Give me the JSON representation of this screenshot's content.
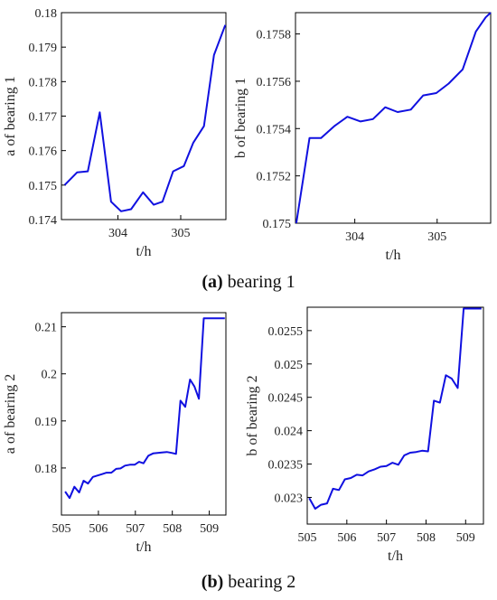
{
  "captions": {
    "a": {
      "letter": "(a)",
      "text": " bearing 1"
    },
    "b": {
      "letter": "(b)",
      "text": " bearing 2"
    }
  },
  "chart_data": [
    {
      "id": "a1",
      "type": "line",
      "xlabel": "t/h",
      "ylabel": "a of  bearing 1",
      "xlim": [
        303.1,
        305.72
      ],
      "ylim": [
        0.174,
        0.18
      ],
      "xticks": [
        "304",
        "305"
      ],
      "yticks": [
        "0.174",
        "0.175",
        "0.176",
        "0.177",
        "0.178",
        "0.179",
        "0.18"
      ],
      "color": "#1010e0",
      "x": [
        303.15,
        303.35,
        303.52,
        303.71,
        303.89,
        304.05,
        304.21,
        304.4,
        304.57,
        304.71,
        304.88,
        305.05,
        305.2,
        305.37,
        305.53,
        305.71
      ],
      "y": [
        0.175,
        0.17537,
        0.1754,
        0.17711,
        0.17452,
        0.17424,
        0.1743,
        0.17479,
        0.17443,
        0.17452,
        0.1754,
        0.17555,
        0.17623,
        0.17671,
        0.17877,
        0.17964
      ]
    },
    {
      "id": "b1",
      "type": "line",
      "xlabel": "t/h",
      "ylabel": "b of  bearing 1",
      "xlim": [
        303.28,
        305.65
      ],
      "ylim": [
        0.175,
        0.17589
      ],
      "xticks": [
        "304",
        "305"
      ],
      "yticks": [
        "0.175",
        "0.1752",
        "0.1754",
        "0.1756",
        "0.1758"
      ],
      "color": "#1010e0",
      "x": [
        303.29,
        303.45,
        303.59,
        303.75,
        303.91,
        304.07,
        304.22,
        304.37,
        304.52,
        304.68,
        304.83,
        304.99,
        305.14,
        305.31,
        305.47,
        305.59,
        305.65
      ],
      "y": [
        0.175,
        0.17536,
        0.17536,
        0.17541,
        0.17545,
        0.17543,
        0.17544,
        0.17549,
        0.17547,
        0.17548,
        0.17554,
        0.17555,
        0.17559,
        0.17565,
        0.17581,
        0.17587,
        0.17589
      ]
    },
    {
      "id": "a2",
      "type": "line",
      "xlabel": "t/h",
      "ylabel": "a of  bearing 2",
      "xlim": [
        505,
        509.45
      ],
      "ylim": [
        0.17,
        0.213
      ],
      "xticks": [
        "505",
        "506",
        "507",
        "508",
        "509"
      ],
      "yticks": [
        "0.18",
        "0.19",
        "0.2",
        "0.21"
      ],
      "color": "#1010e0",
      "x": [
        505.1,
        505.22,
        505.35,
        505.48,
        505.6,
        505.72,
        505.85,
        505.98,
        506.1,
        506.22,
        506.35,
        506.48,
        506.6,
        506.72,
        506.85,
        506.98,
        507.1,
        507.22,
        507.35,
        507.48,
        507.6,
        507.72,
        507.85,
        507.98,
        508.1,
        508.22,
        508.35,
        508.48,
        508.6,
        508.72,
        508.85,
        508.98,
        509.1,
        509.22,
        509.35,
        509.42
      ],
      "y": [
        0.175,
        0.1736,
        0.176,
        0.1748,
        0.1773,
        0.1767,
        0.1781,
        0.1784,
        0.1787,
        0.179,
        0.179,
        0.1798,
        0.1799,
        0.1805,
        0.1807,
        0.1807,
        0.1813,
        0.181,
        0.1826,
        0.1831,
        0.1832,
        0.1833,
        0.1834,
        0.1832,
        0.183,
        0.1943,
        0.193,
        0.1988,
        0.1973,
        0.1947,
        0.2118,
        0.2118,
        0.2118,
        0.2118,
        0.2118,
        0.2118
      ]
    },
    {
      "id": "b2",
      "type": "line",
      "xlabel": "t/h",
      "ylabel": "b of  bearing 2",
      "xlim": [
        505,
        509.45
      ],
      "ylim": [
        0.0226,
        0.02585
      ],
      "xticks": [
        "505",
        "506",
        "507",
        "508",
        "509"
      ],
      "yticks": [
        "0.023",
        "0.0235",
        "0.024",
        "0.0245",
        "0.025",
        "0.0255"
      ],
      "color": "#1010e0",
      "x": [
        505.05,
        505.2,
        505.35,
        505.5,
        505.65,
        505.8,
        505.95,
        506.1,
        506.25,
        506.4,
        506.55,
        506.7,
        506.85,
        507.0,
        507.15,
        507.3,
        507.45,
        507.6,
        507.75,
        507.9,
        508.05,
        508.2,
        508.35,
        508.5,
        508.65,
        508.8,
        508.95,
        509.1,
        509.25,
        509.4
      ],
      "y": [
        0.02299,
        0.02283,
        0.02289,
        0.02291,
        0.02313,
        0.02311,
        0.02327,
        0.02329,
        0.02334,
        0.02333,
        0.02339,
        0.02342,
        0.02346,
        0.02347,
        0.02352,
        0.02349,
        0.02363,
        0.02367,
        0.02368,
        0.0237,
        0.02369,
        0.02445,
        0.02442,
        0.02483,
        0.02478,
        0.02464,
        0.02583,
        0.02583,
        0.02583,
        0.02583
      ]
    }
  ]
}
